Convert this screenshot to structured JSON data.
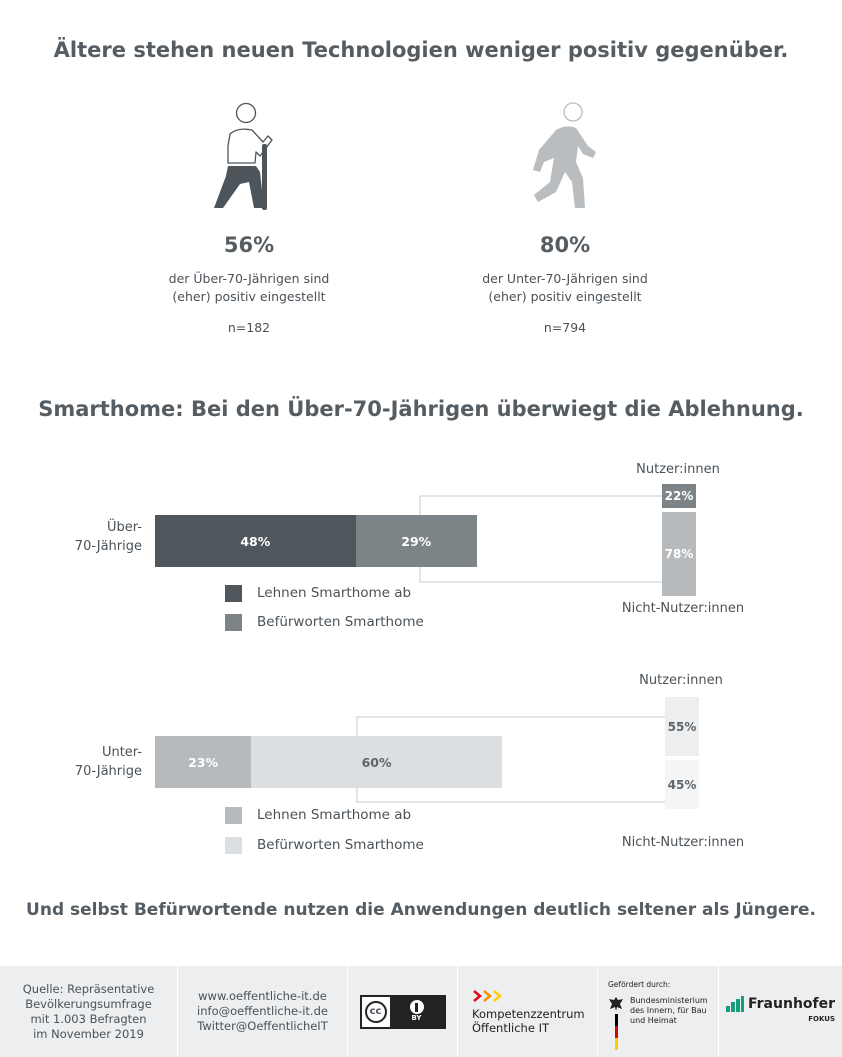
{
  "headline1": "Ältere stehen neuen Technologien weniger positiv gegenüber.",
  "left_stat": {
    "percent": "56%",
    "desc_line1": "der Über-70-Jährigen sind",
    "desc_line2": "(eher) positiv eingestellt",
    "n": "n=182",
    "icon": "elderly-person-with-cane-icon",
    "color": "#4d555b"
  },
  "right_stat": {
    "percent": "80%",
    "desc_line1": "der Unter-70-Jährigen sind",
    "desc_line2": "(eher) positiv eingestellt",
    "n": "n=794",
    "icon": "walking-person-icon",
    "color": "#b9bdc0"
  },
  "headline2": "Smarthome: Bei den Über-70-Jährigen überwiegt die Ablehnung.",
  "chart_data": [
    {
      "type": "bar",
      "category_line1": "Über-",
      "category_line2": "70-Jährige",
      "segments": [
        {
          "name": "Lehnen Smarthome ab",
          "value": 48,
          "label": "48%",
          "color": "#4f575d",
          "text_color": "#ffffff"
        },
        {
          "name": "Befürworten Smarthome",
          "value": 29,
          "label": "29%",
          "color": "#7d8488",
          "text_color": "#ffffff"
        }
      ],
      "breakdown": {
        "top_label": "Nutzer:innen",
        "bottom_label": "Nicht-Nutzer:innen",
        "parts": [
          {
            "value": 22,
            "label": "22%",
            "color": "#7d8488",
            "text_color": "#ffffff"
          },
          {
            "value": 78,
            "label": "78%",
            "color": "#b6babd",
            "text_color": "#ffffff"
          }
        ]
      }
    },
    {
      "type": "bar",
      "category_line1": "Unter-",
      "category_line2": "70-Jährige",
      "segments": [
        {
          "name": "Lehnen Smarthome ab",
          "value": 23,
          "label": "23%",
          "color": "#b6babd",
          "text_color": "#ffffff"
        },
        {
          "name": "Befürworten Smarthome",
          "value": 60,
          "label": "60%",
          "color": "#dcdfe1",
          "text_color": "#5e666b"
        }
      ],
      "breakdown": {
        "top_label": "Nutzer:innen",
        "bottom_label": "Nicht-Nutzer:innen",
        "parts": [
          {
            "value": 55,
            "label": "55%",
            "color": "#eceeef",
            "text_color": "#5e666b"
          },
          {
            "value": 45,
            "label": "45%",
            "color": "#f4f5f6",
            "text_color": "#5e666b"
          }
        ]
      }
    }
  ],
  "headline3": "Und selbst Befürwortende nutzen die Anwendungen deutlich seltener als Jüngere.",
  "footer": {
    "source_l1": "Quelle: Repräsentative",
    "source_l2": "Bevölkerungsumfrage",
    "source_l3": "mit 1.003 Befragten",
    "source_l4": "im November 2019",
    "web": "www.oeffentliche-it.de",
    "email": "info@oeffentliche-it.de",
    "twitter": "Twitter@OeffentlicheIT",
    "cc_text": "cc",
    "cc_by": "BY",
    "kompetenz_l1": "Kompetenzzentrum",
    "kompetenz_l2": "Öffentliche IT",
    "gefoerdert": "Gefördert durch:",
    "bmi_l1": "Bundesministerium",
    "bmi_l2": "des Innern, für Bau",
    "bmi_l3": "und Heimat",
    "fraunhofer": "Fraunhofer",
    "fokus": "FOKUS",
    "arrow_colors": [
      "#e30613",
      "#f39200",
      "#ffcc00"
    ]
  }
}
